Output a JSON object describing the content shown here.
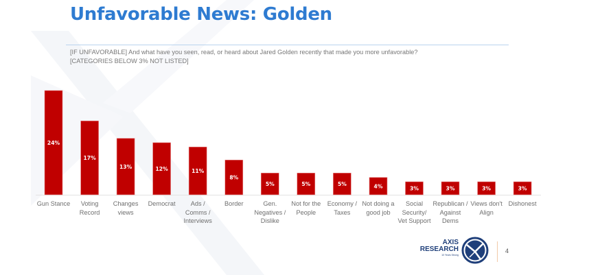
{
  "slide": {
    "title": "Unfavorable News: Golden",
    "question_line1": "[IF UNFAVORABLE] And what have you seen, read, or heard about Jared Golden recently that made you more unfavorable?",
    "question_line2": "[CATEGORIES BELOW 3% NOT LISTED]",
    "page_number": "4",
    "colors": {
      "title": "#2e7bd1",
      "bar": "#c00000",
      "bar_label": "#ffffff",
      "axis_text": "#6e6e6e",
      "rule": "#b9d3ee",
      "logo": "#1f3f7a"
    }
  },
  "logo": {
    "line1": "AXIS",
    "line2": "RESEARCH",
    "tagline": "10 Years Strong",
    "icon": "axis-x-circle-logo-icon"
  },
  "chart_data": {
    "type": "bar",
    "title": "Unfavorable News: Golden",
    "xlabel": "",
    "ylabel": "",
    "ylim": [
      0,
      24
    ],
    "grid": false,
    "legend": "none",
    "value_suffix": "%",
    "categories": [
      [
        "Gun Stance"
      ],
      [
        "Voting",
        "Record"
      ],
      [
        "Changes",
        "views"
      ],
      [
        "Democrat"
      ],
      [
        "Ads /",
        "Comms /",
        "Interviews"
      ],
      [
        "Border"
      ],
      [
        "Gen.",
        "Negatives /",
        "Dislike"
      ],
      [
        "Not for the",
        "People"
      ],
      [
        "Economy /",
        "Taxes"
      ],
      [
        "Not doing a",
        "good job"
      ],
      [
        "Social",
        "Security/",
        "Vet Support"
      ],
      [
        "Republican /",
        "Against",
        "Dems"
      ],
      [
        "Views don't",
        "Align"
      ],
      [
        "Dishonest"
      ]
    ],
    "values": [
      24,
      17,
      13,
      12,
      11,
      8,
      5,
      5,
      5,
      4,
      3,
      3,
      3,
      3
    ],
    "data_labels": [
      "24%",
      "17%",
      "13%",
      "12%",
      "11%",
      "8%",
      "5%",
      "5%",
      "5%",
      "4%",
      "3%",
      "3%",
      "3%",
      "3%"
    ]
  }
}
